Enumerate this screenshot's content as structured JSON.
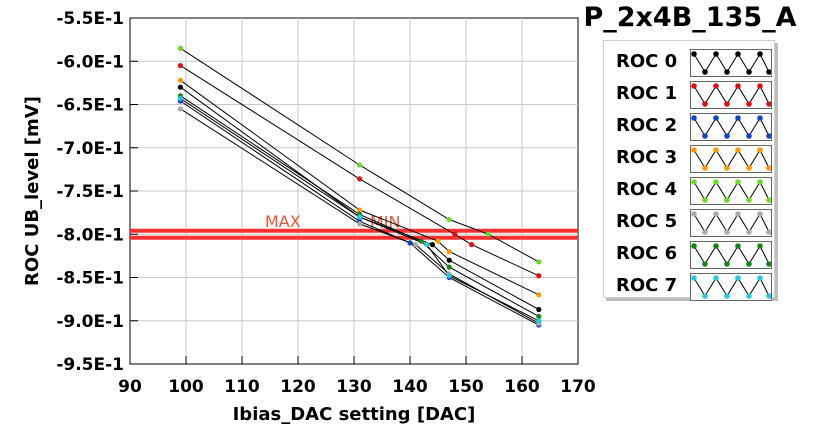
{
  "chart_data": {
    "type": "line",
    "title": "P_2x4B_135_A",
    "xlabel": "Ibias_DAC setting [DAC]",
    "ylabel": "ROC UB_level [mV]",
    "xlim": [
      90,
      170
    ],
    "ylim": [
      -0.95,
      -0.55
    ],
    "x_ticks": [
      "90",
      "100",
      "110",
      "120",
      "130",
      "140",
      "150",
      "160",
      "170"
    ],
    "y_ticks": [
      "-5.5E-1",
      "-6.0E-1",
      "-6.5E-1",
      "-7.0E-1",
      "-7.5E-1",
      "-8.0E-1",
      "-8.5E-1",
      "-9.0E-1",
      "-9.5E-1"
    ],
    "grid": true,
    "legend_position": "right",
    "thresholds": [
      {
        "label": "MAX",
        "value": -0.796,
        "color": "#ff3030"
      },
      {
        "label": "MIN",
        "value": -0.804,
        "color": "#ff3030"
      }
    ],
    "series": [
      {
        "name": "ROC 0",
        "color": "#000000",
        "marker_color": "#000000",
        "points": [
          [
            99,
            -0.63
          ],
          [
            131,
            -0.78
          ],
          [
            144,
            -0.812
          ],
          [
            147,
            -0.83
          ],
          [
            163,
            -0.887
          ]
        ]
      },
      {
        "name": "ROC 1",
        "color": "#000000",
        "marker_color": "#dd1111",
        "points": [
          [
            99,
            -0.605
          ],
          [
            131,
            -0.736
          ],
          [
            148,
            -0.8
          ],
          [
            151,
            -0.812
          ],
          [
            163,
            -0.848
          ]
        ]
      },
      {
        "name": "ROC 2",
        "color": "#000000",
        "marker_color": "#1144cc",
        "points": [
          [
            99,
            -0.646
          ],
          [
            131,
            -0.785
          ],
          [
            140,
            -0.81
          ],
          [
            147,
            -0.85
          ],
          [
            163,
            -0.905
          ]
        ]
      },
      {
        "name": "ROC 3",
        "color": "#000000",
        "marker_color": "#ff9900",
        "points": [
          [
            99,
            -0.622
          ],
          [
            131,
            -0.772
          ],
          [
            145,
            -0.808
          ],
          [
            147,
            -0.82
          ],
          [
            163,
            -0.87
          ]
        ]
      },
      {
        "name": "ROC 4",
        "color": "#000000",
        "marker_color": "#66dd22",
        "points": [
          [
            99,
            -0.585
          ],
          [
            131,
            -0.72
          ],
          [
            147,
            -0.783
          ],
          [
            154,
            -0.8
          ],
          [
            163,
            -0.832
          ]
        ]
      },
      {
        "name": "ROC 5",
        "color": "#000000",
        "marker_color": "#aaaaaa",
        "points": [
          [
            99,
            -0.655
          ],
          [
            131,
            -0.788
          ],
          [
            141,
            -0.812
          ],
          [
            147,
            -0.846
          ],
          [
            163,
            -0.903
          ]
        ]
      },
      {
        "name": "ROC 6",
        "color": "#000000",
        "marker_color": "#118811",
        "points": [
          [
            99,
            -0.64
          ],
          [
            131,
            -0.777
          ],
          [
            142,
            -0.808
          ],
          [
            147,
            -0.838
          ],
          [
            163,
            -0.895
          ]
        ]
      },
      {
        "name": "ROC 7",
        "color": "#000000",
        "marker_color": "#22ccdd",
        "points": [
          [
            99,
            -0.643
          ],
          [
            131,
            -0.78
          ],
          [
            143,
            -0.812
          ],
          [
            147,
            -0.848
          ],
          [
            163,
            -0.9
          ]
        ]
      }
    ]
  }
}
